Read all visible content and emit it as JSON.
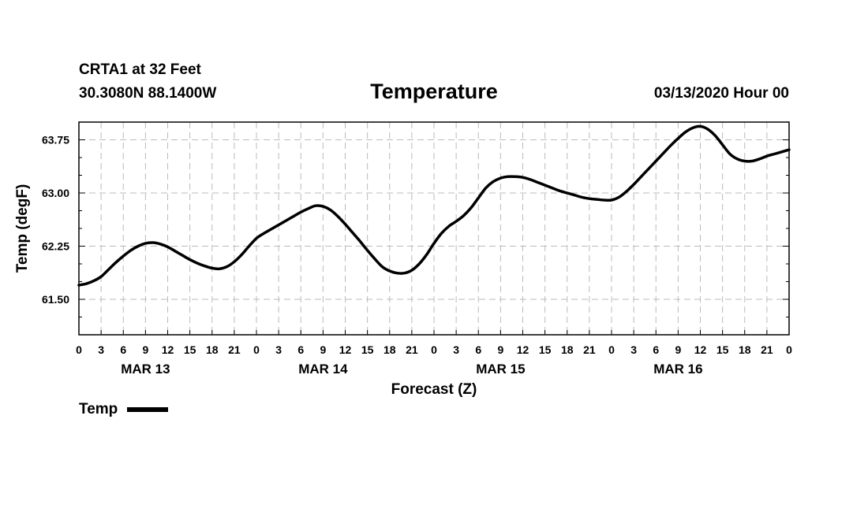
{
  "header": {
    "station": "CRTA1 at 32 Feet",
    "location": "30.3080N 88.1400W",
    "title": "Temperature",
    "issued": "03/13/2020 Hour 00"
  },
  "legend": {
    "label": "Temp"
  },
  "colors": {
    "line": "#000000",
    "grid": "#bbbbbb",
    "frame": "#000000"
  },
  "chart_data": {
    "type": "line",
    "title": "Temperature",
    "xlabel": "Forecast (Z)",
    "ylabel": "Temp (degF)",
    "xlim": [
      0,
      96
    ],
    "ylim": [
      61.0,
      64.0
    ],
    "yticks": [
      61.5,
      62.25,
      63.0,
      63.75
    ],
    "ytick_labels": [
      "61.50",
      "62.25",
      "63.00",
      "63.75"
    ],
    "xticks": [
      0,
      3,
      6,
      9,
      12,
      15,
      18,
      21,
      24,
      27,
      30,
      33,
      36,
      39,
      42,
      45,
      48,
      51,
      54,
      57,
      60,
      63,
      66,
      69,
      72,
      75,
      78,
      81,
      84,
      87,
      90,
      93,
      96
    ],
    "xtick_labels": [
      "0",
      "3",
      "6",
      "9",
      "12",
      "15",
      "18",
      "21",
      "0",
      "3",
      "6",
      "9",
      "12",
      "15",
      "18",
      "21",
      "0",
      "3",
      "6",
      "9",
      "12",
      "15",
      "18",
      "21",
      "0",
      "3",
      "6",
      "9",
      "12",
      "15",
      "18",
      "21",
      "0"
    ],
    "day_labels": [
      {
        "label": "MAR 13",
        "x": 9
      },
      {
        "label": "MAR 14",
        "x": 33
      },
      {
        "label": "MAR 15",
        "x": 57
      },
      {
        "label": "MAR 16",
        "x": 81
      }
    ],
    "legend_position": "bottom-left",
    "grid": true,
    "series": [
      {
        "name": "Temp",
        "x": [
          0,
          1,
          2,
          3,
          4,
          5,
          6,
          7,
          8,
          9,
          10,
          11,
          12,
          13,
          14,
          15,
          16,
          17,
          18,
          19,
          20,
          21,
          22,
          23,
          24,
          25,
          26,
          27,
          28,
          29,
          30,
          31,
          32,
          33,
          34,
          35,
          36,
          37,
          38,
          39,
          40,
          41,
          42,
          43,
          44,
          45,
          46,
          47,
          48,
          49,
          50,
          51,
          52,
          53,
          54,
          55,
          56,
          57,
          58,
          59,
          60,
          61,
          62,
          63,
          64,
          65,
          66,
          67,
          68,
          69,
          70,
          71,
          72,
          73,
          74,
          75,
          76,
          77,
          78,
          79,
          80,
          81,
          82,
          83,
          84,
          85,
          86,
          87,
          88,
          89,
          90,
          91,
          92,
          93,
          94,
          95,
          96
        ],
        "values": [
          61.7,
          61.72,
          61.76,
          61.82,
          61.92,
          62.02,
          62.11,
          62.19,
          62.25,
          62.29,
          62.3,
          62.28,
          62.24,
          62.18,
          62.12,
          62.06,
          62.01,
          61.97,
          61.94,
          61.93,
          61.96,
          62.03,
          62.13,
          62.25,
          62.36,
          62.43,
          62.49,
          62.55,
          62.61,
          62.67,
          62.73,
          62.78,
          62.82,
          62.81,
          62.76,
          62.67,
          62.56,
          62.44,
          62.32,
          62.19,
          62.07,
          61.96,
          61.9,
          61.87,
          61.87,
          61.91,
          62.0,
          62.13,
          62.29,
          62.43,
          62.53,
          62.6,
          62.68,
          62.79,
          62.93,
          63.07,
          63.16,
          63.21,
          63.23,
          63.23,
          63.22,
          63.19,
          63.15,
          63.11,
          63.07,
          63.03,
          63.0,
          62.97,
          62.94,
          62.92,
          62.91,
          62.9,
          62.9,
          62.94,
          63.02,
          63.12,
          63.23,
          63.34,
          63.45,
          63.56,
          63.67,
          63.77,
          63.86,
          63.92,
          63.94,
          63.9,
          63.81,
          63.68,
          63.55,
          63.48,
          63.45,
          63.45,
          63.48,
          63.52,
          63.55,
          63.58,
          63.61
        ]
      }
    ]
  }
}
